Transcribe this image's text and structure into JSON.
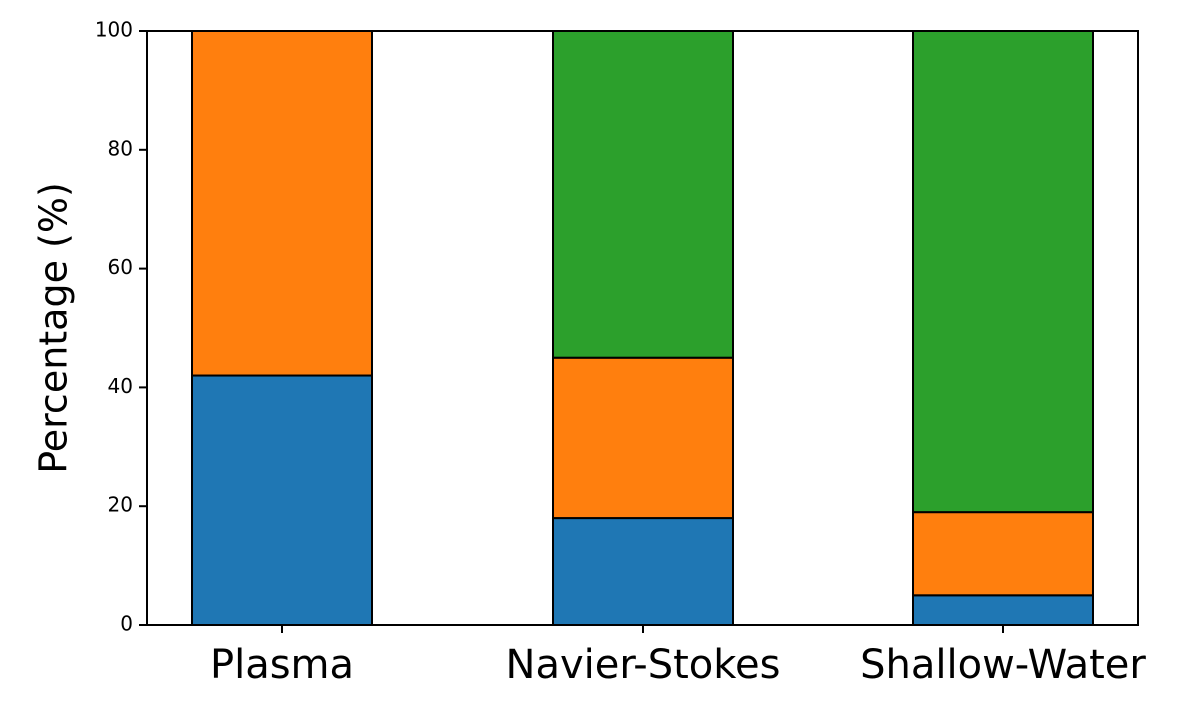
{
  "chart_data": {
    "type": "bar",
    "stacked": true,
    "categories": [
      "Plasma",
      "Navier-Stokes",
      "Shallow-Water"
    ],
    "series": [
      {
        "color": "#1f77b4",
        "values": [
          42,
          18,
          5
        ]
      },
      {
        "color": "#ff7f0e",
        "values": [
          58,
          27,
          14
        ]
      },
      {
        "color": "#2ca02c",
        "values": [
          0,
          55,
          81
        ]
      }
    ],
    "ylabel": "Percentage (%)",
    "ylim": [
      0,
      100
    ],
    "yticks": [
      "0",
      "20",
      "40",
      "60",
      "80",
      "100"
    ],
    "grid": false,
    "legend": "none"
  }
}
